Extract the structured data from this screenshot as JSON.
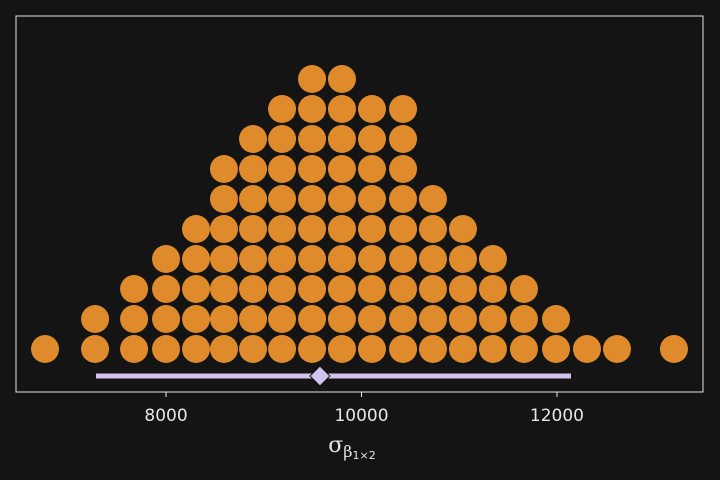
{
  "chart_data": {
    "type": "dotplot",
    "x_label": {
      "base": "σ",
      "sub": "β",
      "subsub": "1×2"
    },
    "x": [
      6762,
      7274,
      7673,
      8000,
      8307,
      8593,
      8890,
      9187,
      9494,
      9800,
      10107,
      10425,
      10731,
      11038,
      11345,
      11662,
      11990,
      12307,
      12614,
      13197
    ],
    "counts": [
      1,
      2,
      3,
      4,
      5,
      7,
      8,
      9,
      10,
      10,
      9,
      9,
      6,
      5,
      4,
      3,
      2,
      1,
      1,
      1
    ],
    "color": "#e08b2b",
    "interval": {
      "low": 7284,
      "high": 12143,
      "point": 9575,
      "color": "#d2c3ee"
    },
    "xlim": [
      6465,
      13494
    ],
    "xticks": [
      8000,
      10000,
      12000
    ]
  }
}
